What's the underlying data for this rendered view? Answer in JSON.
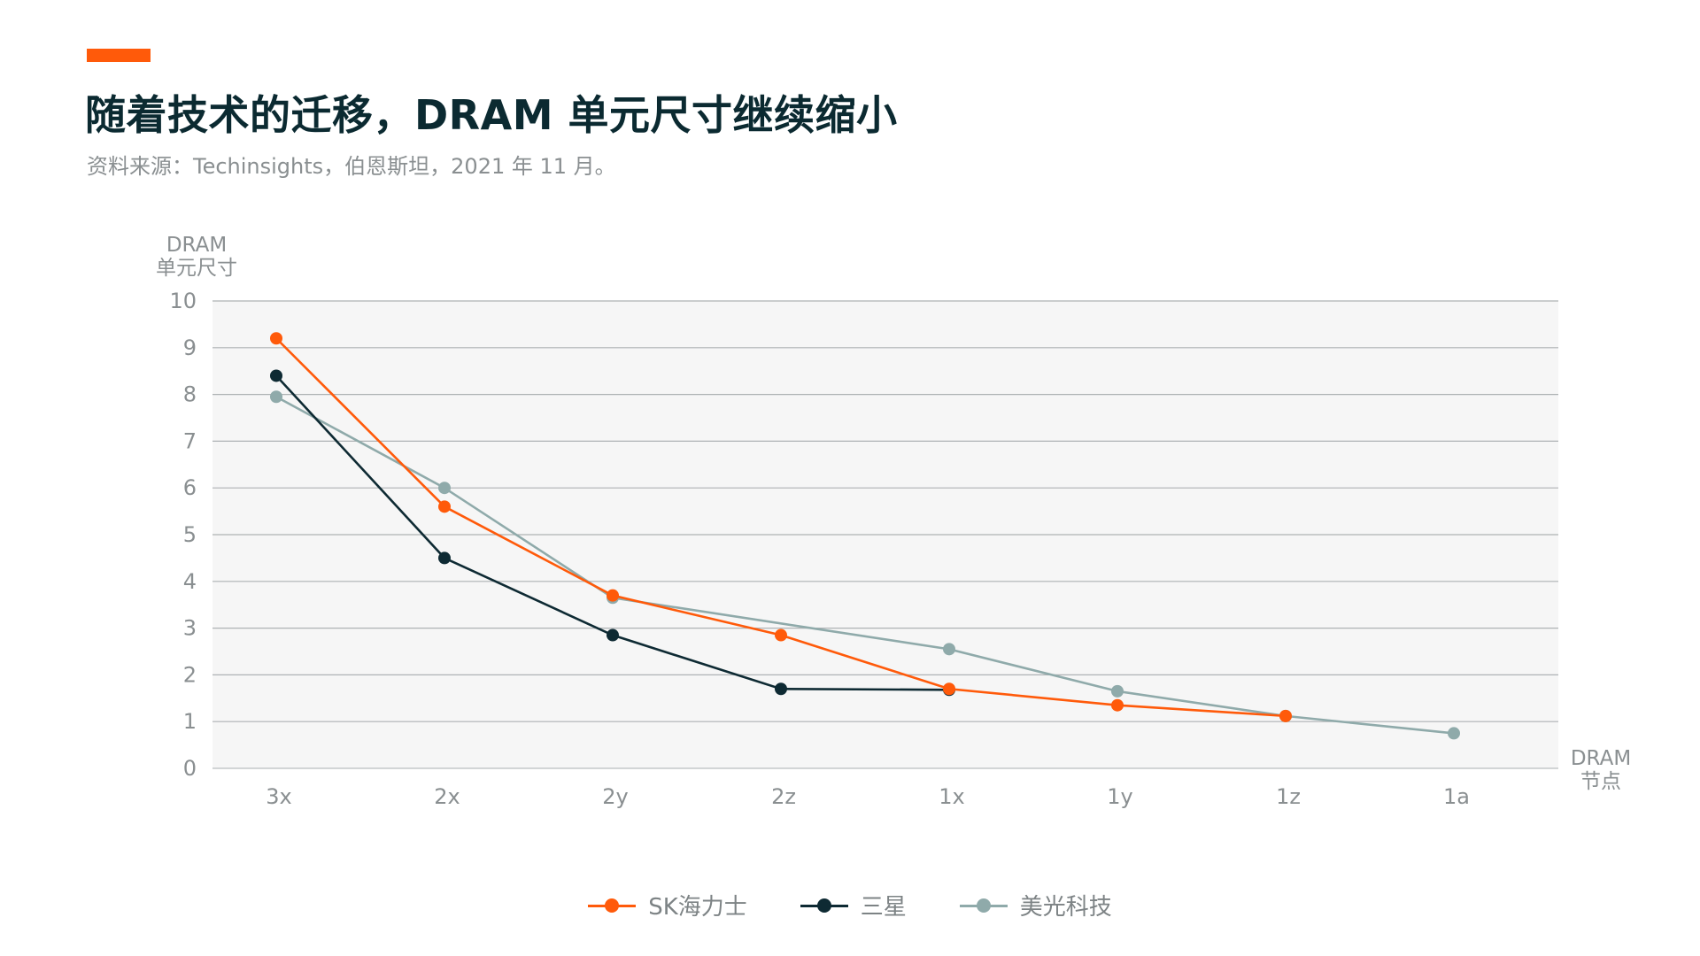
{
  "header": {
    "title": "随着技术的迁移，DRAM 单元尺寸继续缩小",
    "subtitle": "资料来源：Techinsights，伯恩斯坦，2021 年 11 月。",
    "accent_color": "#FF5A0A"
  },
  "chart_data": {
    "type": "line",
    "ylabel": [
      "DRAM",
      "单元尺寸"
    ],
    "xlabel": [
      "DRAM",
      "节点"
    ],
    "ylim": [
      0,
      10
    ],
    "yticks": [
      "0",
      "1",
      "2",
      "3",
      "4",
      "5",
      "6",
      "7",
      "8",
      "9",
      "10"
    ],
    "categories": [
      "3x",
      "2x",
      "2y",
      "2z",
      "1x",
      "1y",
      "1z",
      "1a"
    ],
    "grid": true,
    "plot_background": "#F6F6F6",
    "legend_position": "bottom-center",
    "series": [
      {
        "name": "SK海力士",
        "color": "#FF5A0A",
        "values": [
          9.2,
          5.6,
          3.7,
          2.85,
          1.7,
          1.35,
          1.12,
          null
        ]
      },
      {
        "name": "三星",
        "color": "#0E2A33",
        "values": [
          8.4,
          4.5,
          2.85,
          1.7,
          1.68,
          null,
          null,
          null
        ]
      },
      {
        "name": "美光科技",
        "color": "#8FAAAA",
        "values": [
          7.95,
          6.0,
          3.65,
          null,
          2.55,
          1.65,
          1.12,
          0.75
        ]
      }
    ]
  }
}
